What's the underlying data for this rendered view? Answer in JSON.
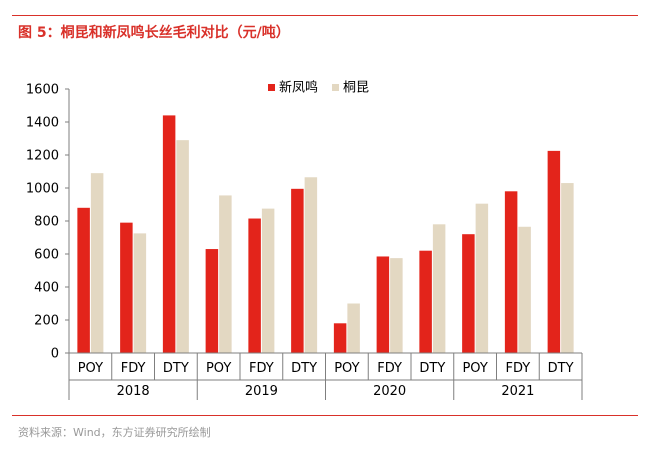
{
  "header": {
    "title": "图 5：桐昆和新凤鸣长丝毛利对比（元/吨）"
  },
  "footer": {
    "source": "资料来源：Wind，东方证券研究所绘制"
  },
  "colors": {
    "accent": "#d9312a",
    "xinfengming": "#e3241b",
    "tongkun": "#e3d8c2"
  },
  "chart_data": {
    "type": "bar",
    "title": "",
    "ylim": [
      0,
      1600
    ],
    "yticks": [
      0,
      200,
      400,
      600,
      800,
      1000,
      1200,
      1400,
      1600
    ],
    "legend_position": "top-center",
    "grid": false,
    "categories": [
      "POY",
      "FDY",
      "DTY",
      "POY",
      "FDY",
      "DTY",
      "POY",
      "FDY",
      "DTY",
      "POY",
      "FDY",
      "DTY"
    ],
    "groups": [
      {
        "label": "2018",
        "span": 3
      },
      {
        "label": "2019",
        "span": 3
      },
      {
        "label": "2020",
        "span": 3
      },
      {
        "label": "2021",
        "span": 3
      }
    ],
    "series": [
      {
        "name": "新凤鸣",
        "values": [
          880,
          790,
          1440,
          630,
          815,
          995,
          180,
          585,
          620,
          720,
          980,
          1225
        ]
      },
      {
        "name": "桐昆",
        "values": [
          1090,
          725,
          1290,
          955,
          875,
          1065,
          300,
          575,
          780,
          905,
          765,
          1030
        ]
      }
    ]
  }
}
